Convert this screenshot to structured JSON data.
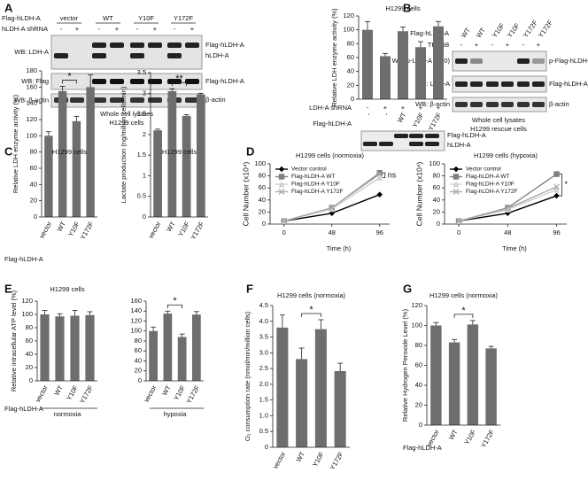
{
  "panel_labels": [
    "A",
    "B",
    "C",
    "D",
    "E",
    "F",
    "G"
  ],
  "blots": {
    "A": {
      "rows": [
        "Flag-hLDH-A",
        "hLDH-A shRNA"
      ],
      "lanes": [
        "vector",
        "WT",
        "Y10F",
        "Y172F"
      ],
      "signs": [
        "-",
        "+",
        "-",
        "+",
        "-",
        "+",
        "-",
        "+"
      ],
      "wb": [
        "WB: LDH-A",
        "WB: Flag",
        "WB: β-actin"
      ],
      "markers": [
        "Flag-hLDH-A",
        "hLDH-A",
        "Flag-hLDH-A",
        "β-actin"
      ],
      "caption": [
        "Whole cell lysates",
        "H1299 cells"
      ]
    },
    "A2": {
      "markers": [
        "Flag-hLDH-A",
        "hLDH-A"
      ]
    },
    "B": {
      "rows": [
        "Flag-hLDH-A",
        "TKI258"
      ],
      "lanes": [
        "WT",
        "WT",
        "Y10F",
        "Y10F",
        "Y172F",
        "Y172F"
      ],
      "signs": [
        "-",
        "+",
        "-",
        "+",
        "-",
        "+"
      ],
      "wb": [
        "WB: p-LDH-A (Y10)",
        "WB: LDH-A",
        "WB: β-actin"
      ],
      "markers": [
        "p-Flag-hLDH-A",
        "Flag-hLDH-A",
        "β-actin"
      ],
      "caption": [
        "Whole cell lysates",
        "H1299 rescue cells"
      ]
    }
  },
  "chart_data": [
    {
      "type": "bar",
      "title": "H1299 cells",
      "ylabel": "Relative LDH enzyme activity (%)",
      "row_labels": [
        "LDH-A shRNA",
        "Flag-hLDH-A"
      ],
      "shrna": [
        "-",
        "+",
        "+",
        "+",
        "+"
      ],
      "categories": [
        "-",
        "-",
        "WT",
        "Y10F",
        "Y172F"
      ],
      "values": [
        100,
        62,
        98,
        75,
        105
      ],
      "errors": [
        12,
        4,
        6,
        8,
        7
      ],
      "color": "#6e6e6e",
      "ylim": [
        0,
        120
      ],
      "yticks": [
        0,
        20,
        40,
        60,
        80,
        100,
        120
      ]
    },
    {
      "type": "bar",
      "title": "H1299 cells",
      "ylabel": "Relative LDH enzyme activity (%)",
      "xlabel": "Flag-hLDH-A",
      "categories": [
        "vector",
        "WT",
        "Y10F",
        "Y172F"
      ],
      "values": [
        100,
        155,
        118,
        160
      ],
      "errors": [
        5,
        6,
        6,
        15
      ],
      "color": "#6e6e6e",
      "ylim": [
        0,
        180
      ],
      "yticks": [
        0,
        20,
        40,
        60,
        80,
        100,
        120,
        140,
        160,
        180
      ],
      "annotation": "*"
    },
    {
      "type": "bar",
      "title": "H1299 cells",
      "ylabel": "Lactate production (ng/million cells/min)",
      "categories": [
        "vector",
        "WT",
        "Y10F",
        "Y172F"
      ],
      "values": [
        2.1,
        3.05,
        2.45,
        2.97
      ],
      "errors": [
        0.03,
        0.06,
        0.03,
        0.03
      ],
      "color": "#6e6e6e",
      "ylim": [
        0,
        3.5
      ],
      "yticks": [
        0,
        0.5,
        1,
        1.5,
        2,
        2.5,
        3,
        3.5
      ],
      "annotation": "**"
    },
    {
      "type": "line",
      "title": "H1299 cells (normoxia)",
      "ylabel": "Cell Number (x10⁴)",
      "xlabel": "Time (h)",
      "x": [
        0,
        48,
        96
      ],
      "xlim": [
        -14,
        106
      ],
      "xticks": [
        0,
        48,
        96
      ],
      "ylim": [
        0,
        100
      ],
      "yticks": [
        0,
        20,
        40,
        60,
        80,
        100
      ],
      "annotation": "ns",
      "series": [
        {
          "name": "Vector control",
          "color": "#000000",
          "marker": "diamond",
          "values": [
            5,
            18,
            49
          ]
        },
        {
          "name": "Flag-hLDH-A WT",
          "color": "#808080",
          "marker": "square",
          "values": [
            5,
            27,
            85
          ]
        },
        {
          "name": "Flag-hLDH-A Y10F",
          "color": "#cfcfcf",
          "marker": "triangle",
          "values": [
            5,
            25,
            77
          ]
        },
        {
          "name": "Flag-hLDH-A Y172F",
          "color": "#ababab",
          "marker": "x",
          "values": [
            5,
            27,
            83
          ]
        }
      ]
    },
    {
      "type": "line",
      "title": "H1299 cells (hypoxia)",
      "ylabel": "Cell Number (x10⁴)",
      "xlabel": "Time (h)",
      "x": [
        0,
        48,
        96
      ],
      "xlim": [
        -14,
        106
      ],
      "xticks": [
        0,
        48,
        96
      ],
      "ylim": [
        0,
        100
      ],
      "yticks": [
        0,
        20,
        40,
        60,
        80,
        100
      ],
      "annotation": "*",
      "series": [
        {
          "name": "Vector control",
          "color": "#000000",
          "marker": "diamond",
          "values": [
            5,
            18,
            47
          ]
        },
        {
          "name": "Flag-hLDH-A WT",
          "color": "#808080",
          "marker": "square",
          "values": [
            5,
            27,
            83
          ]
        },
        {
          "name": "Flag-hLDH-A Y10F",
          "color": "#cfcfcf",
          "marker": "triangle",
          "values": [
            5,
            24,
            57
          ]
        },
        {
          "name": "Flag-hLDH-A Y172F",
          "color": "#ababab",
          "marker": "x",
          "values": [
            5,
            26,
            62
          ]
        }
      ]
    },
    {
      "type": "bar",
      "title": "H1299 cells",
      "ylabel": "Relative intracellular ATP level  (%)",
      "xlabel": "Flag-hLDH-A",
      "group_label": "normoxia",
      "categories": [
        "vector",
        "WT",
        "Y10F",
        "Y172F"
      ],
      "values": [
        100,
        97,
        98,
        99
      ],
      "errors": [
        6,
        4,
        8,
        5
      ],
      "color": "#6e6e6e",
      "ylim": [
        0,
        120
      ],
      "yticks": [
        0,
        20,
        40,
        60,
        80,
        100,
        120
      ]
    },
    {
      "type": "bar",
      "group_label": "hypoxia",
      "categories": [
        "vector",
        "WT",
        "Y10F",
        "Y172F"
      ],
      "values": [
        100,
        135,
        88,
        133
      ],
      "errors": [
        8,
        5,
        6,
        6
      ],
      "color": "#6e6e6e",
      "ylim": [
        0,
        160
      ],
      "yticks": [
        0,
        20,
        40,
        60,
        80,
        100,
        120,
        140,
        160
      ],
      "annotation": "*"
    },
    {
      "type": "bar",
      "title": "H1299 cells (normoxia)",
      "ylabel": "O₂ consumption rate (nmol/min/million cells)",
      "categories": [
        "vector",
        "WT",
        "Y10F",
        "Y172F"
      ],
      "values": [
        3.8,
        2.8,
        3.75,
        2.42
      ],
      "errors": [
        0.4,
        0.35,
        0.3,
        0.25
      ],
      "color": "#6e6e6e",
      "ylim": [
        0,
        4.5
      ],
      "yticks": [
        0,
        0.5,
        {
          "value": 1,
          "label": "1.0"
        },
        1.5,
        {
          "value": 2,
          "label": "2.0"
        },
        2.5,
        {
          "value": 3,
          "label": "3.0"
        },
        3.5,
        {
          "value": 4,
          "label": "4.0"
        },
        4.5
      ],
      "annotation": "*"
    },
    {
      "type": "bar",
      "title": "H1299 cells (normoxia)",
      "ylabel": "Relative Hydrogen Peroxide Level (%)",
      "xlabel": "Flag-hLDH-A",
      "categories": [
        "vector",
        "WT",
        "Y10F",
        "Y172F"
      ],
      "values": [
        100,
        83,
        101,
        77
      ],
      "errors": [
        3,
        3,
        4,
        2
      ],
      "color": "#6e6e6e",
      "ylim": [
        0,
        120
      ],
      "yticks": [
        0,
        20,
        40,
        60,
        80,
        100,
        120
      ],
      "annotation": "*"
    }
  ]
}
